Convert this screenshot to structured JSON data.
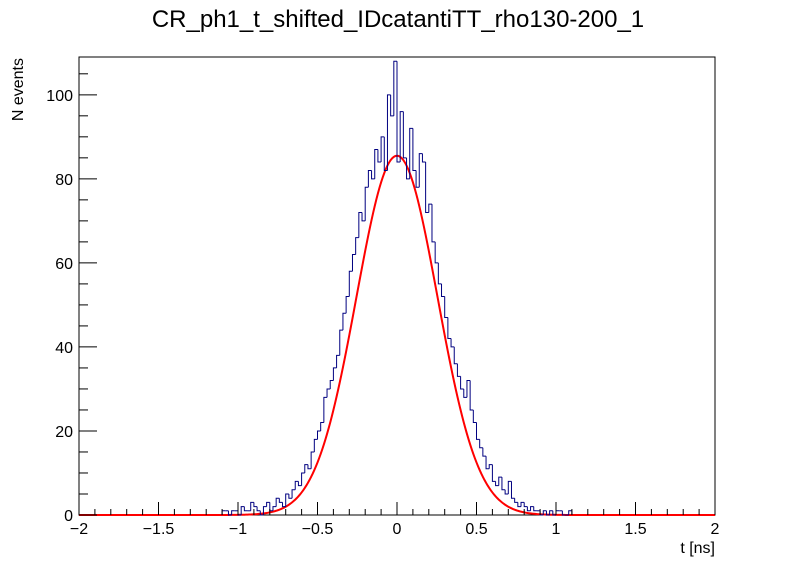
{
  "chart_data": {
    "type": "histogram",
    "title": "CR_ph1_t_shifted_IDcatantiTT_rho130-200_1",
    "xlabel": "t [ns]",
    "ylabel": "N events",
    "xlim": [
      -2,
      2
    ],
    "ylim": [
      0,
      109
    ],
    "x_ticks": [
      -2,
      -1.5,
      -1,
      -0.5,
      0,
      0.5,
      1,
      1.5,
      2
    ],
    "x_tick_labels": [
      "−2",
      "−1.5",
      "−1",
      "−0.5",
      "0",
      "0.5",
      "1",
      "1.5",
      "2"
    ],
    "y_ticks": [
      0,
      20,
      40,
      60,
      80,
      100
    ],
    "y_tick_labels": [
      "0",
      "20",
      "40",
      "60",
      "80",
      "100"
    ],
    "histogram": {
      "name": "data",
      "color": "#000080",
      "bin_width": 0.02,
      "bin_low_edges": [
        -1.1,
        -1.08,
        -1.06,
        -1.04,
        -1.02,
        -1.0,
        -0.98,
        -0.96,
        -0.94,
        -0.92,
        -0.9,
        -0.88,
        -0.86,
        -0.84,
        -0.82,
        -0.8,
        -0.78,
        -0.76,
        -0.74,
        -0.72,
        -0.7,
        -0.68,
        -0.66,
        -0.64,
        -0.62,
        -0.6,
        -0.58,
        -0.56,
        -0.54,
        -0.52,
        -0.5,
        -0.48,
        -0.46,
        -0.44,
        -0.42,
        -0.4,
        -0.38,
        -0.36,
        -0.34,
        -0.32,
        -0.3,
        -0.28,
        -0.26,
        -0.24,
        -0.22,
        -0.2,
        -0.18,
        -0.16,
        -0.14,
        -0.12,
        -0.1,
        -0.08,
        -0.06,
        -0.04,
        -0.02,
        0.0,
        0.02,
        0.04,
        0.06,
        0.08,
        0.1,
        0.12,
        0.14,
        0.16,
        0.18,
        0.2,
        0.22,
        0.24,
        0.26,
        0.28,
        0.3,
        0.32,
        0.34,
        0.36,
        0.38,
        0.4,
        0.42,
        0.44,
        0.46,
        0.48,
        0.5,
        0.52,
        0.54,
        0.56,
        0.58,
        0.6,
        0.62,
        0.64,
        0.66,
        0.68,
        0.7,
        0.72,
        0.74,
        0.76,
        0.78,
        0.8,
        0.82,
        0.84,
        0.86,
        0.88,
        0.9,
        0.92,
        0.94,
        0.96,
        0.98,
        1.0,
        1.02,
        1.04,
        1.06,
        1.08
      ],
      "counts": [
        1,
        1,
        0,
        1,
        1,
        0,
        2,
        1,
        1,
        3,
        2,
        1,
        0,
        2,
        3,
        1,
        2,
        4,
        3,
        2,
        5,
        4,
        6,
        8,
        7,
        10,
        12,
        11,
        15,
        18,
        20,
        22,
        28,
        30,
        32,
        35,
        38,
        44,
        48,
        52,
        58,
        62,
        66,
        72,
        70,
        78,
        82,
        80,
        87,
        84,
        90,
        82,
        100,
        95,
        108,
        84,
        96,
        85,
        80,
        92,
        82,
        78,
        86,
        84,
        72,
        74,
        65,
        60,
        55,
        52,
        47,
        42,
        40,
        36,
        33,
        30,
        28,
        32,
        25,
        22,
        18,
        16,
        14,
        11,
        12,
        8,
        7,
        9,
        6,
        5,
        8,
        4,
        3,
        2,
        3,
        2,
        1,
        2,
        1,
        1,
        0,
        1,
        0,
        1,
        0,
        1,
        1,
        0,
        0,
        1
      ]
    },
    "fit": {
      "name": "gaussian fit",
      "color": "#ff0000",
      "function": "gaussian",
      "amplitude": 85.5,
      "mean": 0.0,
      "sigma": 0.255,
      "range": [
        -2,
        2
      ]
    }
  }
}
